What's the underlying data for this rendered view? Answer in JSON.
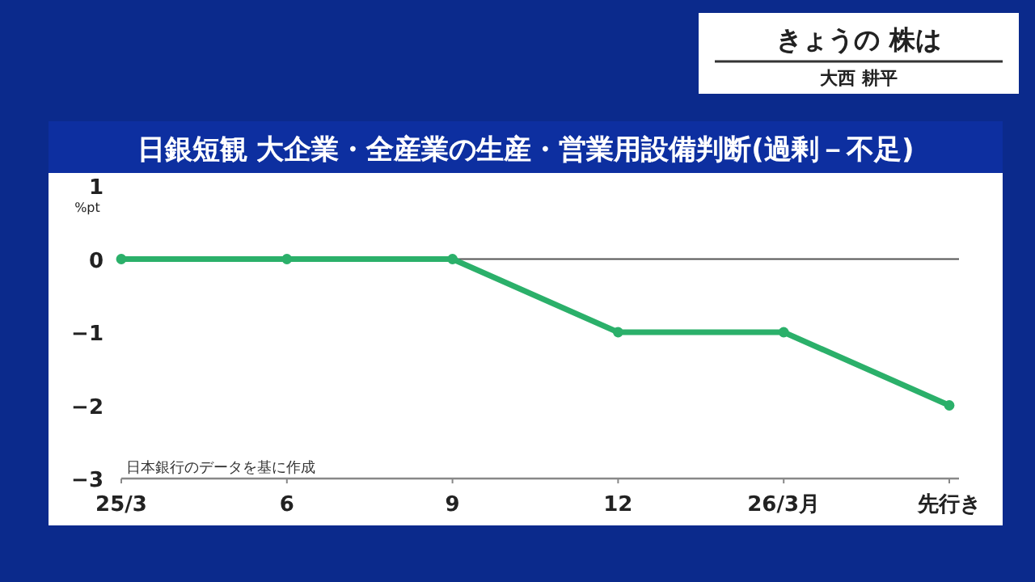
{
  "chart_data": {
    "type": "line",
    "title": "日銀短観 大企業・全産業の生産・営業用設備判断(過剰－不足)",
    "ylabel": "%pt",
    "categories": [
      "25/3",
      "6",
      "9",
      "12",
      "26/3月",
      "先行き"
    ],
    "series": [
      {
        "color": "#2bb06a",
        "values": [
          0,
          0,
          0,
          -1,
          -1,
          -2
        ]
      }
    ],
    "ylim": [
      -3,
      1
    ],
    "yticks": [
      1,
      0,
      {
        "value": -1,
        "label": "−1"
      },
      {
        "value": -2,
        "label": "−2"
      },
      {
        "value": -3,
        "label": "−3"
      }
    ],
    "ref_lines": [
      {
        "axis": "y",
        "value": 0,
        "color": "#555555"
      }
    ],
    "marker": "circle",
    "line_style": "solid",
    "grid": false,
    "annotations": [
      "日本銀行のデータを基に作成",
      "きょうの 株は",
      "大西 耕平"
    ]
  }
}
